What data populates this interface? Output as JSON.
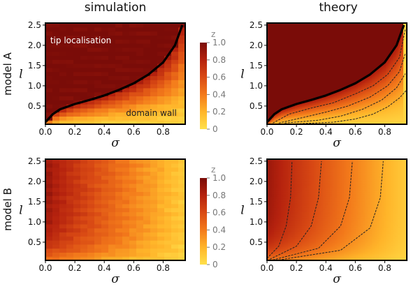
{
  "figure": {
    "col_titles": [
      "simulation",
      "theory"
    ],
    "row_titles": [
      "model A",
      "model B"
    ]
  },
  "chart_data": [
    {
      "id": "simulation-model-A",
      "type": "heatmap",
      "xlabel": "σ",
      "ylabel": "l",
      "xlim": [
        0,
        0.95
      ],
      "ylim": [
        0.05,
        2.55
      ],
      "xticks": [
        "0.0",
        "0.2",
        "0.4",
        "0.6",
        "0.8"
      ],
      "yticks": [
        "0.5",
        "1.0",
        "1.5",
        "2.0",
        "2.5"
      ],
      "annotations": [
        {
          "text": "tip localisation",
          "at": [
            0.24,
            2.05
          ],
          "color": "#ffffff"
        },
        {
          "text": "domain wall",
          "at": [
            0.72,
            0.26
          ],
          "color": "#222222"
        }
      ],
      "boundary_curve": [
        [
          0.0,
          0.1
        ],
        [
          0.05,
          0.3
        ],
        [
          0.1,
          0.42
        ],
        [
          0.2,
          0.55
        ],
        [
          0.3,
          0.65
        ],
        [
          0.4,
          0.76
        ],
        [
          0.5,
          0.9
        ],
        [
          0.6,
          1.06
        ],
        [
          0.7,
          1.28
        ],
        [
          0.8,
          1.58
        ],
        [
          0.88,
          2.0
        ],
        [
          0.93,
          2.5
        ]
      ]
    },
    {
      "id": "theory-model-A",
      "type": "heatmap",
      "xlabel": "σ",
      "ylabel": "l",
      "xlim": [
        0,
        0.95
      ],
      "ylim": [
        0.05,
        2.55
      ],
      "xticks": [
        "0.0",
        "0.2",
        "0.4",
        "0.6",
        "0.8"
      ],
      "yticks": [
        "0.5",
        "1.0",
        "1.5",
        "2.0",
        "2.5"
      ],
      "boundary_curve": [
        [
          0.0,
          0.1
        ],
        [
          0.05,
          0.3
        ],
        [
          0.1,
          0.42
        ],
        [
          0.2,
          0.55
        ],
        [
          0.3,
          0.65
        ],
        [
          0.4,
          0.76
        ],
        [
          0.5,
          0.9
        ],
        [
          0.6,
          1.06
        ],
        [
          0.7,
          1.28
        ],
        [
          0.8,
          1.58
        ],
        [
          0.88,
          2.0
        ],
        [
          0.93,
          2.5
        ]
      ],
      "contour_curves": [
        [
          [
            0.04,
            0.08
          ],
          [
            0.15,
            0.3
          ],
          [
            0.3,
            0.45
          ],
          [
            0.45,
            0.58
          ],
          [
            0.6,
            0.8
          ],
          [
            0.72,
            1.0
          ],
          [
            0.82,
            1.28
          ],
          [
            0.9,
            1.7
          ],
          [
            0.94,
            2.4
          ]
        ],
        [
          [
            0.08,
            0.08
          ],
          [
            0.25,
            0.22
          ],
          [
            0.4,
            0.35
          ],
          [
            0.55,
            0.5
          ],
          [
            0.7,
            0.72
          ],
          [
            0.82,
            1.0
          ],
          [
            0.9,
            1.35
          ],
          [
            0.94,
            1.8
          ]
        ],
        [
          [
            0.12,
            0.08
          ],
          [
            0.35,
            0.15
          ],
          [
            0.5,
            0.25
          ],
          [
            0.65,
            0.42
          ],
          [
            0.78,
            0.65
          ],
          [
            0.88,
            0.95
          ],
          [
            0.94,
            1.3
          ]
        ],
        [
          [
            0.2,
            0.06
          ],
          [
            0.45,
            0.1
          ],
          [
            0.6,
            0.18
          ],
          [
            0.72,
            0.3
          ],
          [
            0.82,
            0.48
          ],
          [
            0.9,
            0.7
          ],
          [
            0.95,
            0.9
          ]
        ]
      ]
    },
    {
      "id": "simulation-model-B",
      "type": "heatmap",
      "xlabel": "σ",
      "ylabel": "l",
      "xlim": [
        0,
        0.95
      ],
      "ylim": [
        0.05,
        2.55
      ],
      "xticks": [
        "0.0",
        "0.2",
        "0.4",
        "0.6",
        "0.8"
      ],
      "yticks": [
        "0.5",
        "1.0",
        "1.5",
        "2.0",
        "2.5"
      ]
    },
    {
      "id": "theory-model-B",
      "type": "heatmap",
      "xlabel": "σ",
      "ylabel": "l",
      "xlim": [
        0,
        0.95
      ],
      "ylim": [
        0.05,
        2.55
      ],
      "xticks": [
        "0.0",
        "0.2",
        "0.4",
        "0.6",
        "0.8"
      ],
      "yticks": [
        "0.5",
        "1.0",
        "1.5",
        "2.0",
        "2.5"
      ],
      "contour_curves": [
        [
          [
            0.0,
            0.1
          ],
          [
            0.08,
            0.4
          ],
          [
            0.13,
            0.9
          ],
          [
            0.16,
            1.6
          ],
          [
            0.17,
            2.5
          ]
        ],
        [
          [
            0.02,
            0.08
          ],
          [
            0.2,
            0.4
          ],
          [
            0.3,
            0.9
          ],
          [
            0.35,
            1.6
          ],
          [
            0.37,
            2.5
          ]
        ],
        [
          [
            0.04,
            0.06
          ],
          [
            0.35,
            0.35
          ],
          [
            0.5,
            0.9
          ],
          [
            0.56,
            1.6
          ],
          [
            0.58,
            2.5
          ]
        ],
        [
          [
            0.08,
            0.06
          ],
          [
            0.5,
            0.3
          ],
          [
            0.7,
            0.85
          ],
          [
            0.77,
            1.6
          ],
          [
            0.79,
            2.5
          ]
        ]
      ]
    }
  ],
  "colorbar": {
    "title": "z",
    "range": [
      0,
      1
    ],
    "ticks": [
      "1.0",
      "0.8",
      "0.6",
      "0.4",
      "0.2",
      "0"
    ],
    "stops": [
      "#ffe04a",
      "#ffb52a",
      "#f37a1b",
      "#d94a14",
      "#b5220e",
      "#7a0c08"
    ]
  }
}
